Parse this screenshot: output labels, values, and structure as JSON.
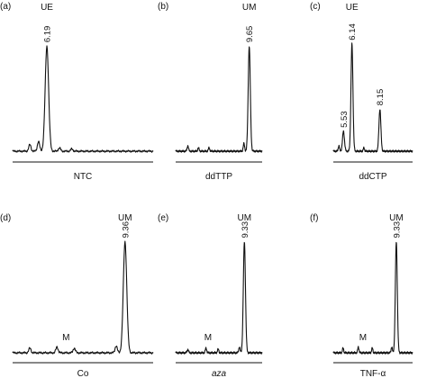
{
  "chart_data": [
    {
      "type": "line",
      "panel": "(a)",
      "condition": "NTC",
      "peak_tag": "UE",
      "peaks": [
        {
          "x": 6.19,
          "label": "6.19",
          "height": 0.95
        }
      ],
      "minor_peaks": [
        {
          "x": 5.5,
          "height": 0.06
        },
        {
          "x": 5.85,
          "height": 0.09
        },
        {
          "x": 6.7,
          "height": 0.03
        },
        {
          "x": 7.2,
          "height": 0.02
        }
      ],
      "xlim": [
        4.8,
        10.5
      ]
    },
    {
      "type": "line",
      "panel": "(b)",
      "condition": "ddTTP",
      "peak_tag": "UM",
      "peaks": [
        {
          "x": 9.65,
          "label": "9.65",
          "height": 0.95
        }
      ],
      "minor_peaks": [
        {
          "x": 5.6,
          "height": 0.05
        },
        {
          "x": 6.3,
          "height": 0.03
        },
        {
          "x": 7.0,
          "height": 0.03
        },
        {
          "x": 9.3,
          "height": 0.07
        }
      ],
      "xlim": [
        4.8,
        10.5
      ]
    },
    {
      "type": "line",
      "panel": "(c)",
      "condition": "ddCTP",
      "peak_tag": "UE",
      "peaks": [
        {
          "x": 5.53,
          "label": "5.53",
          "height": 0.18
        },
        {
          "x": 6.14,
          "label": "6.14",
          "height": 0.97
        },
        {
          "x": 8.15,
          "label": "8.15",
          "height": 0.38
        }
      ],
      "minor_peaks": [
        {
          "x": 5.2,
          "height": 0.05
        },
        {
          "x": 7.0,
          "height": 0.03
        }
      ],
      "xlim": [
        4.8,
        10.5
      ]
    },
    {
      "type": "line",
      "panel": "(d)",
      "condition": "Co",
      "peak_tag": "UM",
      "minor_tag": "M",
      "peaks": [
        {
          "x": 9.36,
          "label": "9.36",
          "height": 0.95
        }
      ],
      "minor_peaks": [
        {
          "x": 5.5,
          "height": 0.04
        },
        {
          "x": 6.6,
          "height": 0.05
        },
        {
          "x": 7.3,
          "height": 0.04
        },
        {
          "x": 9.0,
          "height": 0.06
        }
      ],
      "xlim": [
        4.8,
        10.5
      ]
    },
    {
      "type": "line",
      "panel": "(e)",
      "condition": "aza",
      "peak_tag": "UM",
      "minor_tag": "M",
      "peaks": [
        {
          "x": 9.33,
          "label": "9.33",
          "height": 0.95
        }
      ],
      "minor_peaks": [
        {
          "x": 5.6,
          "height": 0.03
        },
        {
          "x": 6.8,
          "height": 0.04
        },
        {
          "x": 7.6,
          "height": 0.03
        },
        {
          "x": 9.0,
          "height": 0.05
        }
      ],
      "xlim": [
        4.8,
        10.5
      ]
    },
    {
      "type": "line",
      "panel": "(f)",
      "condition": "TNF-α",
      "peak_tag": "UM",
      "minor_tag": "M",
      "peaks": [
        {
          "x": 9.33,
          "label": "9.33",
          "height": 0.95
        }
      ],
      "minor_peaks": [
        {
          "x": 5.5,
          "height": 0.04
        },
        {
          "x": 6.6,
          "height": 0.05
        },
        {
          "x": 7.6,
          "height": 0.04
        },
        {
          "x": 9.0,
          "height": 0.05
        }
      ],
      "xlim": [
        4.8,
        10.5
      ]
    }
  ]
}
